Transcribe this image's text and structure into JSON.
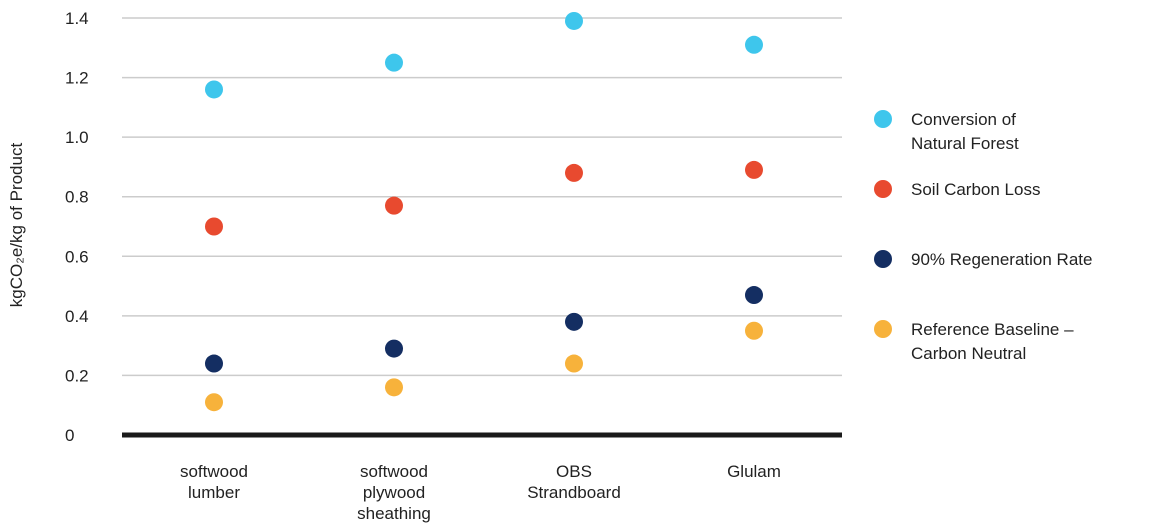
{
  "chart_data": {
    "type": "scatter",
    "ylabel": "kgCO₂e/kg of Product",
    "ylim": [
      0,
      1.4
    ],
    "yticks": [
      0,
      0.2,
      0.4,
      0.6,
      0.8,
      1.0,
      1.2,
      1.4
    ],
    "ytick_labels": [
      "0",
      "0.2",
      "0.4",
      "0.6",
      "0.8",
      "1.0",
      "1.2",
      "1.4"
    ],
    "grid": true,
    "legend_position": "right",
    "categories": [
      [
        "softwood",
        "lumber"
      ],
      [
        "softwood",
        "plywood",
        "sheathing"
      ],
      [
        "OBS",
        "Strandboard"
      ],
      [
        "Glulam"
      ]
    ],
    "series": [
      {
        "name": [
          "Conversion of",
          "Natural Forest"
        ],
        "color": "#3EC6EC",
        "values": [
          1.16,
          1.25,
          1.39,
          1.31
        ]
      },
      {
        "name": [
          "Soil Carbon Loss"
        ],
        "color": "#E84A2F",
        "values": [
          0.7,
          0.77,
          0.88,
          0.89
        ]
      },
      {
        "name": [
          "90% Regeneration Rate"
        ],
        "color": "#142E62",
        "values": [
          0.24,
          0.29,
          0.38,
          0.47
        ]
      },
      {
        "name": [
          "Reference Baseline –",
          "Carbon Neutral"
        ],
        "color": "#F7B23B",
        "values": [
          0.11,
          0.16,
          0.24,
          0.35
        ]
      }
    ]
  }
}
